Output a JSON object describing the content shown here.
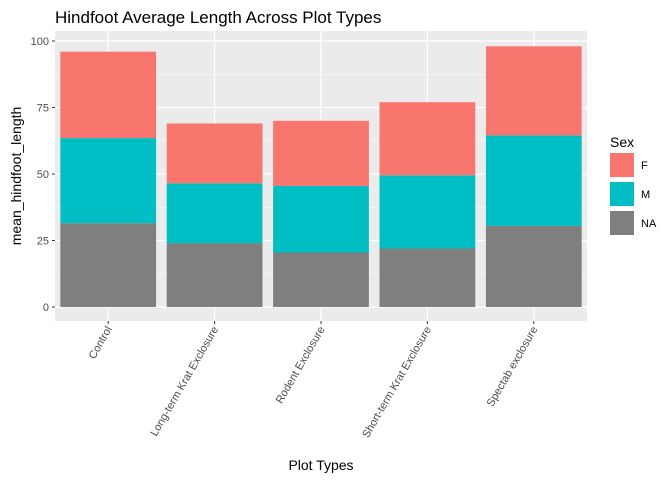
{
  "chart_data": {
    "type": "bar",
    "stacked": true,
    "title": "Hindfoot Average Length Across Plot Types",
    "xlabel": "Plot Types",
    "ylabel": "mean_hindfoot_length",
    "categories": [
      "Control",
      "Long-term Krat Exclosure",
      "Rodent Exclosure",
      "Short-term Krat Exclosure",
      "Spectab exclosure"
    ],
    "series": [
      {
        "name": "NA",
        "color": "#7f7f7f",
        "values": [
          31.5,
          24.0,
          20.5,
          22.0,
          30.5
        ]
      },
      {
        "name": "M",
        "color": "#00bfc4",
        "values": [
          32.0,
          22.5,
          25.0,
          27.5,
          34.0
        ]
      },
      {
        "name": "F",
        "color": "#f8766d",
        "values": [
          32.5,
          22.5,
          24.5,
          27.5,
          33.5
        ]
      }
    ],
    "ylim": [
      0,
      100
    ],
    "yticks": [
      0,
      25,
      50,
      75,
      100
    ],
    "grid": true,
    "x_tick_rotation": -60,
    "legend": {
      "title": "Sex",
      "position": "right",
      "order": [
        "F",
        "M",
        "NA"
      ]
    }
  }
}
